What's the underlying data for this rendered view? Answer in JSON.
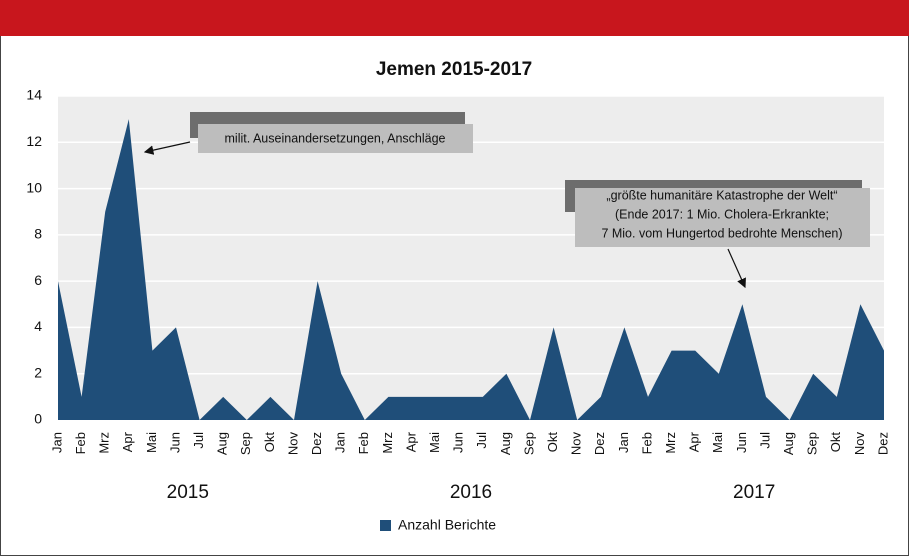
{
  "chart_data": {
    "type": "area",
    "title": "Jemen 2015-2017",
    "categories": [
      "Jan",
      "Feb",
      "Mrz",
      "Apr",
      "Mai",
      "Jun",
      "Jul",
      "Aug",
      "Sep",
      "Okt",
      "Nov",
      "Dez",
      "Jan",
      "Feb",
      "Mrz",
      "Apr",
      "Mai",
      "Jun",
      "Jul",
      "Aug",
      "Sep",
      "Okt",
      "Nov",
      "Dez",
      "Jan",
      "Feb",
      "Mrz",
      "Apr",
      "Mai",
      "Jun",
      "Jul",
      "Aug",
      "Sep",
      "Okt",
      "Nov",
      "Dez"
    ],
    "series": [
      {
        "name": "Anzahl Berichte",
        "color": "#1f4e79",
        "values": [
          6,
          1,
          9,
          13,
          3,
          4,
          0,
          1,
          0,
          1,
          0,
          6,
          2,
          0,
          1,
          1,
          1,
          1,
          1,
          2,
          0,
          4,
          0,
          1,
          4,
          1,
          3,
          3,
          2,
          5,
          1,
          0,
          2,
          1,
          5,
          3
        ]
      }
    ],
    "year_labels": [
      "2015",
      "2016",
      "2017"
    ],
    "ylim": [
      0,
      14
    ],
    "yticks": [
      0,
      2,
      4,
      6,
      8,
      10,
      12,
      14
    ],
    "grid": true,
    "annotations": [
      {
        "lines": [
          "milit. Auseinandersetzungen, Anschläge"
        ]
      },
      {
        "lines": [
          "„größte humanitäre Katastrophe der Welt“",
          "(Ende 2017: 1 Mio. Cholera-Erkrankte;",
          "7 Mio. vom Hungertod bedrohte Menschen)"
        ]
      }
    ]
  }
}
